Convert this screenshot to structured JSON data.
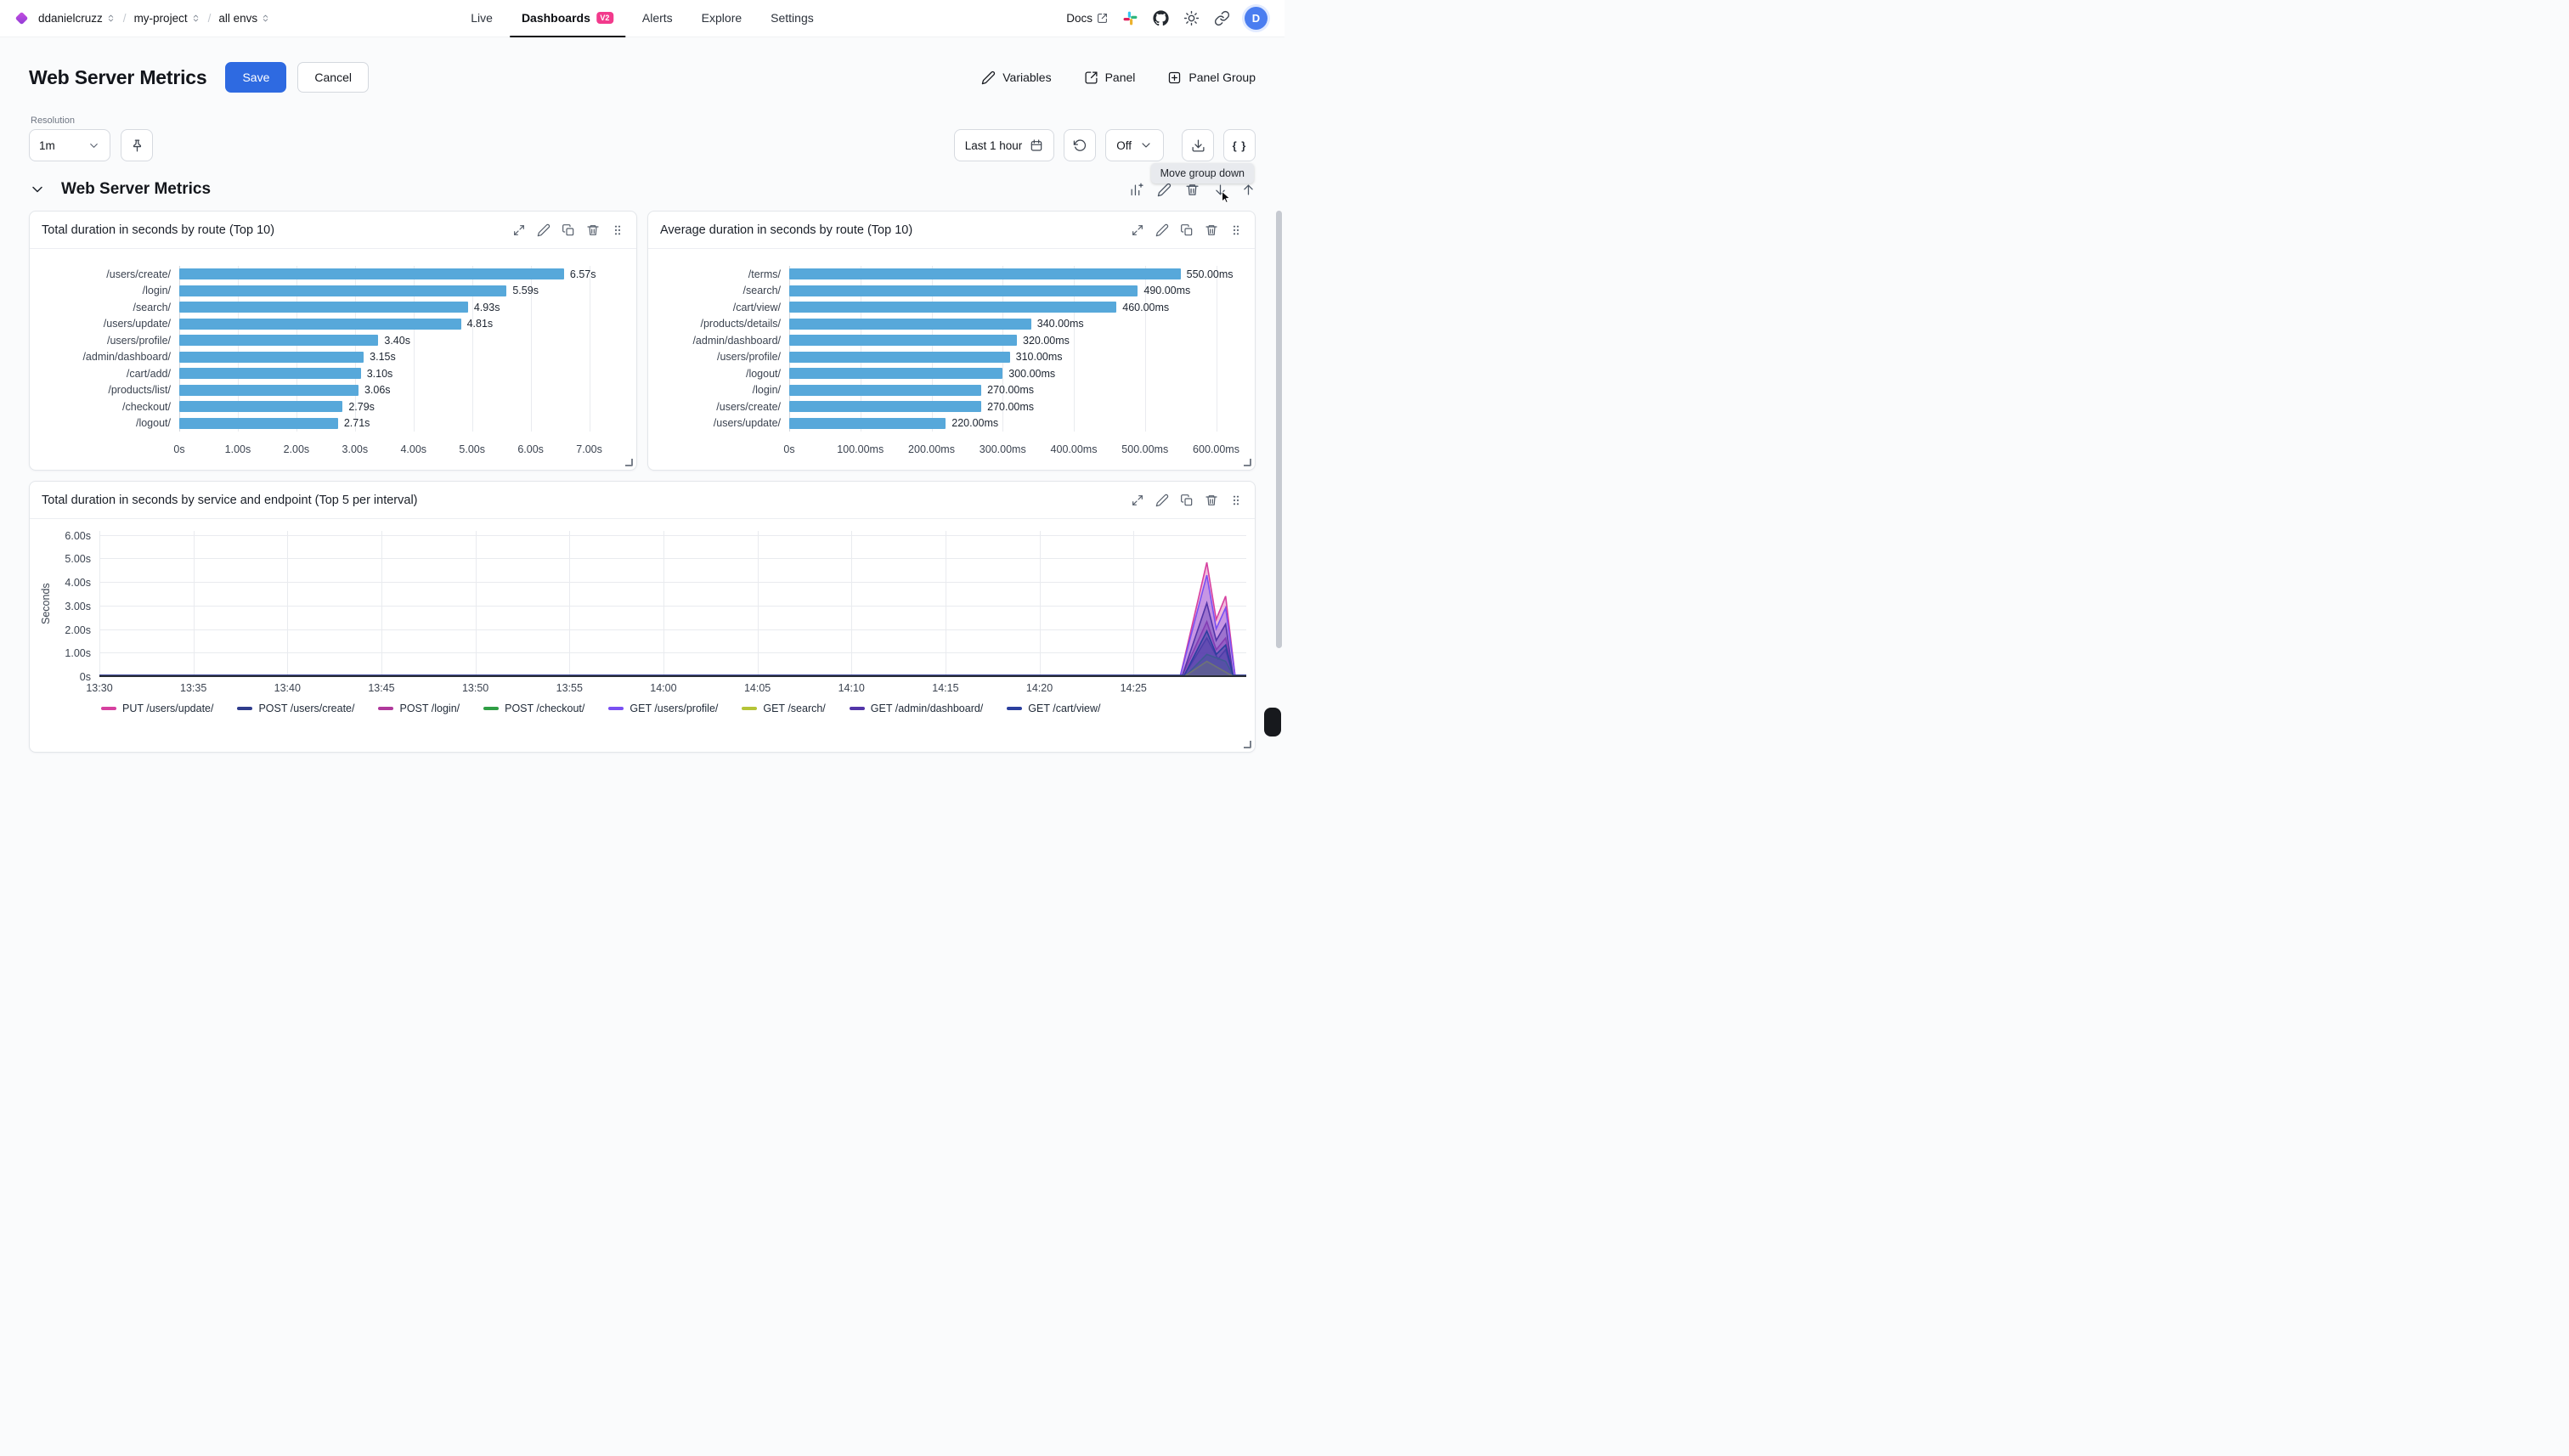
{
  "navbar": {
    "breadcrumb": [
      {
        "label": "ddanielcruzz"
      },
      {
        "label": "my-project"
      },
      {
        "label": "all envs"
      }
    ],
    "tabs": [
      {
        "label": "Live"
      },
      {
        "label": "Dashboards",
        "badge": "V2",
        "active": true
      },
      {
        "label": "Alerts"
      },
      {
        "label": "Explore"
      },
      {
        "label": "Settings"
      }
    ],
    "docs_label": "Docs",
    "avatar_initial": "D"
  },
  "header": {
    "title": "Web Server Metrics",
    "save": "Save",
    "cancel": "Cancel",
    "variables": "Variables",
    "panel": "Panel",
    "panel_group": "Panel Group"
  },
  "toolbar": {
    "resolution_label": "Resolution",
    "resolution_value": "1m",
    "time_range": "Last 1 hour",
    "auto_refresh": "Off",
    "code_button": "{ }",
    "tooltip": "Move group down"
  },
  "group": {
    "title": "Web Server Metrics"
  },
  "icons": [
    "diamond-logo",
    "chevrons-up-down",
    "external-link",
    "slack",
    "github",
    "theme-sun",
    "copy-link",
    "pencil",
    "open-panel",
    "plus-square",
    "pin",
    "calendar",
    "refresh",
    "chevron-down",
    "download",
    "braces",
    "collapse-chevron",
    "add-chart",
    "trash",
    "arrow-down",
    "arrow-up",
    "expand",
    "duplicate",
    "drag-handle",
    "cursor-pointer"
  ],
  "chart_data": [
    {
      "type": "bar",
      "orientation": "horizontal",
      "title": "Total duration in seconds by route (Top 10)",
      "categories": [
        "/users/create/",
        "/login/",
        "/search/",
        "/users/update/",
        "/users/profile/",
        "/admin/dashboard/",
        "/cart/add/",
        "/products/list/",
        "/checkout/",
        "/logout/"
      ],
      "values": [
        6.57,
        5.59,
        4.93,
        4.81,
        3.4,
        3.15,
        3.1,
        3.06,
        2.79,
        2.71
      ],
      "value_labels": [
        "6.57s",
        "5.59s",
        "4.93s",
        "4.81s",
        "3.40s",
        "3.15s",
        "3.10s",
        "3.06s",
        "2.79s",
        "2.71s"
      ],
      "x_ticks": [
        0,
        1,
        2,
        3,
        4,
        5,
        6,
        7
      ],
      "x_tick_labels": [
        "0s",
        "1.00s",
        "2.00s",
        "3.00s",
        "4.00s",
        "5.00s",
        "6.00s",
        "7.00s"
      ],
      "xmax": 7.63,
      "bar_color": "#57a8da",
      "grid": true
    },
    {
      "type": "bar",
      "orientation": "horizontal",
      "title": "Average duration in seconds by route (Top 10)",
      "categories": [
        "/terms/",
        "/search/",
        "/cart/view/",
        "/products/details/",
        "/admin/dashboard/",
        "/users/profile/",
        "/logout/",
        "/login/",
        "/users/create/",
        "/users/update/"
      ],
      "values": [
        550,
        490,
        460,
        340,
        320,
        310,
        300,
        270,
        270,
        220
      ],
      "value_labels": [
        "550.00ms",
        "490.00ms",
        "460.00ms",
        "340.00ms",
        "320.00ms",
        "310.00ms",
        "300.00ms",
        "270.00ms",
        "270.00ms",
        "220.00ms"
      ],
      "x_ticks": [
        0,
        100,
        200,
        300,
        400,
        500,
        600
      ],
      "x_tick_labels": [
        "0s",
        "100.00ms",
        "200.00ms",
        "300.00ms",
        "400.00ms",
        "500.00ms",
        "600.00ms"
      ],
      "xmax": 640,
      "bar_color": "#57a8da",
      "grid": true
    },
    {
      "type": "line",
      "title": "Total duration in seconds by service and endpoint (Top 5 per interval)",
      "ylabel": "Seconds",
      "ymax": 6.2,
      "y_ticks": [
        0,
        1,
        2,
        3,
        4,
        5,
        6
      ],
      "y_tick_labels": [
        "0s",
        "1.00s",
        "2.00s",
        "3.00s",
        "4.00s",
        "5.00s",
        "6.00s"
      ],
      "x_domain_minutes": [
        0,
        61
      ],
      "x_start_time": "13:30",
      "x_ticks_minutes": [
        0,
        5,
        10,
        15,
        20,
        25,
        30,
        35,
        40,
        45,
        50,
        55
      ],
      "x_tick_labels": [
        "13:30",
        "13:35",
        "13:40",
        "13:45",
        "13:50",
        "13:55",
        "14:00",
        "14:05",
        "14:10",
        "14:15",
        "14:20",
        "14:25"
      ],
      "legend_position": "bottom",
      "grid": true,
      "series": [
        {
          "name": "PUT /users/update/",
          "color": "#d6409f",
          "points": [
            [
              0,
              0
            ],
            [
              57.5,
              0
            ],
            [
              58.9,
              4.85
            ],
            [
              59.4,
              2.4
            ],
            [
              59.9,
              3.4
            ],
            [
              60.4,
              0
            ],
            [
              61,
              0
            ]
          ]
        },
        {
          "name": "POST /users/create/",
          "color": "#2f3c8c",
          "points": [
            [
              0,
              0
            ],
            [
              57.7,
              0
            ],
            [
              58.9,
              1.6
            ],
            [
              59.5,
              0.7
            ],
            [
              59.9,
              1.1
            ],
            [
              60.3,
              0
            ],
            [
              61,
              0
            ]
          ]
        },
        {
          "name": "POST /login/",
          "color": "#b0399b",
          "points": [
            [
              0,
              0
            ],
            [
              57.6,
              0
            ],
            [
              58.9,
              2.3
            ],
            [
              59.4,
              1.1
            ],
            [
              59.9,
              1.6
            ],
            [
              60.3,
              0
            ],
            [
              61,
              0
            ]
          ]
        },
        {
          "name": "POST /checkout/",
          "color": "#2f9e44",
          "points": [
            [
              0,
              0
            ],
            [
              57.8,
              0
            ],
            [
              58.9,
              0.9
            ],
            [
              59.9,
              0.6
            ],
            [
              60.3,
              0
            ],
            [
              61,
              0
            ]
          ]
        },
        {
          "name": "GET /users/profile/",
          "color": "#7950f2",
          "points": [
            [
              0,
              0
            ],
            [
              57.5,
              0
            ],
            [
              58.9,
              4.3
            ],
            [
              59.4,
              2.0
            ],
            [
              59.9,
              2.9
            ],
            [
              60.4,
              0
            ],
            [
              61,
              0
            ]
          ]
        },
        {
          "name": "GET /search/",
          "color": "#b5c437",
          "points": [
            [
              0,
              0
            ],
            [
              57.8,
              0
            ],
            [
              58.9,
              0.6
            ],
            [
              60.2,
              0
            ],
            [
              61,
              0
            ]
          ]
        },
        {
          "name": "GET /admin/dashboard/",
          "color": "#5235a8",
          "points": [
            [
              0,
              0
            ],
            [
              57.6,
              0
            ],
            [
              58.9,
              3.1
            ],
            [
              59.4,
              1.5
            ],
            [
              59.9,
              2.2
            ],
            [
              60.3,
              0
            ],
            [
              61,
              0
            ]
          ]
        },
        {
          "name": "GET /cart/view/",
          "color": "#2b3f9e",
          "points": [
            [
              0,
              0
            ],
            [
              57.7,
              0
            ],
            [
              58.9,
              1.9
            ],
            [
              59.4,
              0.9
            ],
            [
              59.9,
              1.3
            ],
            [
              60.3,
              0
            ],
            [
              61,
              0
            ]
          ]
        }
      ]
    }
  ]
}
